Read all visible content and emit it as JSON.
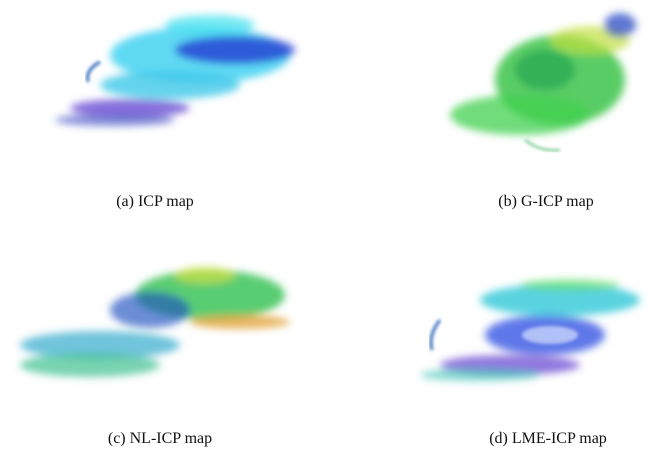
{
  "figures": [
    {
      "caption": "(a) ICP map"
    },
    {
      "caption": "(b) G-ICP map"
    },
    {
      "caption": "(c) NL-ICP map"
    },
    {
      "caption": "(d) LME-ICP map"
    }
  ]
}
